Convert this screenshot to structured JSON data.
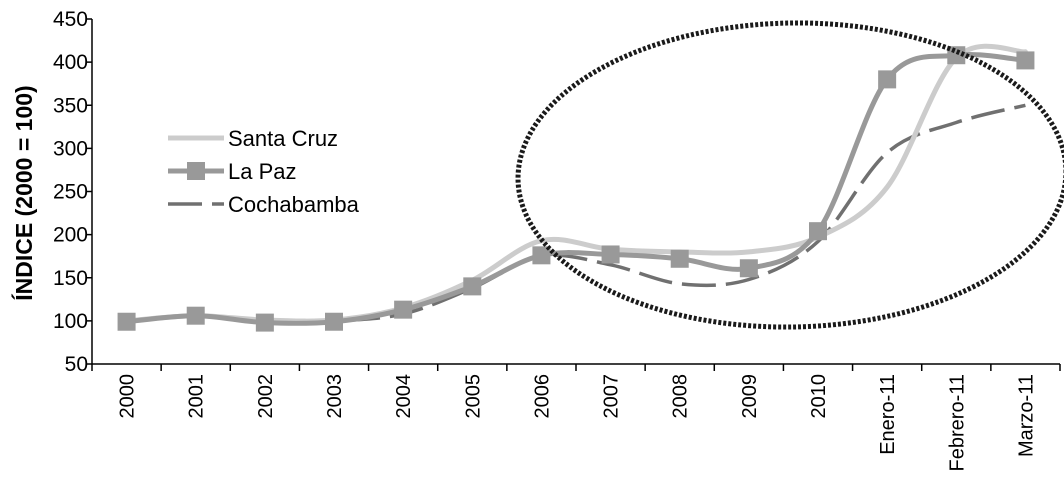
{
  "chart_data": {
    "type": "line",
    "title": "",
    "xlabel": "",
    "ylabel": "ÍNDICE (2000 = 100)",
    "ylim": [
      50,
      450
    ],
    "yticks": [
      50,
      100,
      150,
      200,
      250,
      300,
      350,
      400,
      450
    ],
    "categories": [
      "2000",
      "2001",
      "2002",
      "2003",
      "2004",
      "2005",
      "2006",
      "2007",
      "2008",
      "2009",
      "2010",
      "Enero-11",
      "Febrero-11",
      "Marzo-11"
    ],
    "legend_position": "left",
    "grid": false,
    "annotation": "dashed-ellipse-2006-to-Marzo-11",
    "series": [
      {
        "name": "Santa Cruz",
        "color": "#cccccc",
        "style": "solid",
        "values": [
          100,
          106,
          101,
          101,
          115,
          147,
          193,
          183,
          180,
          180,
          197,
          255,
          405,
          412
        ]
      },
      {
        "name": "La Paz",
        "color": "#999999",
        "style": "solid-square-markers",
        "values": [
          99,
          106,
          98,
          99,
          113,
          140,
          176,
          177,
          172,
          161,
          204,
          380,
          408,
          402
        ]
      },
      {
        "name": "Cochabamba",
        "color": "#707070",
        "style": "dashed",
        "values": [
          99,
          106,
          100,
          100,
          108,
          138,
          175,
          165,
          143,
          148,
          192,
          295,
          330,
          350
        ]
      }
    ]
  }
}
